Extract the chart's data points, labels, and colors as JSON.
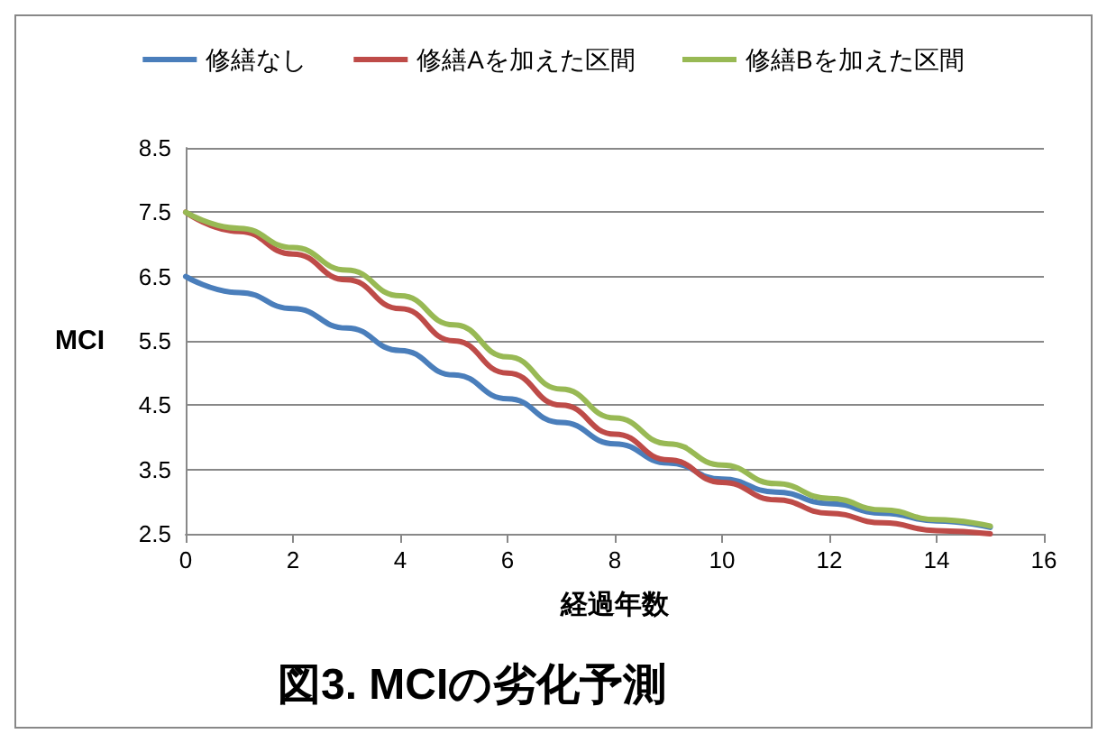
{
  "chart_data": {
    "type": "line",
    "title": "図3. MCIの劣化予測",
    "xlabel": "経過年数",
    "ylabel": "MCI",
    "x": [
      0,
      1,
      2,
      3,
      4,
      5,
      6,
      7,
      8,
      9,
      10,
      11,
      12,
      13,
      14,
      15
    ],
    "series": [
      {
        "name": "修繕なし",
        "color": "#4a7ebb",
        "values": [
          6.5,
          6.25,
          6.0,
          5.7,
          5.35,
          4.97,
          4.6,
          4.23,
          3.9,
          3.6,
          3.35,
          3.15,
          2.97,
          2.82,
          2.7,
          2.6
        ]
      },
      {
        "name": "修繕Aを加えた区間",
        "color": "#be4b48",
        "values": [
          7.5,
          7.2,
          6.85,
          6.45,
          6.0,
          5.5,
          5.0,
          4.5,
          4.05,
          3.65,
          3.3,
          3.03,
          2.82,
          2.67,
          2.55,
          2.5
        ]
      },
      {
        "name": "修繕Bを加えた区間",
        "color": "#98b954",
        "values": [
          7.5,
          7.25,
          6.95,
          6.6,
          6.2,
          5.75,
          5.25,
          4.75,
          4.3,
          3.9,
          3.57,
          3.28,
          3.05,
          2.87,
          2.72,
          2.62
        ]
      }
    ],
    "xlim": [
      0,
      16
    ],
    "xticks": [
      0,
      2,
      4,
      6,
      8,
      10,
      12,
      14,
      16
    ],
    "ylim": [
      2.5,
      8.5
    ],
    "yticks": [
      2.5,
      3.5,
      4.5,
      5.5,
      6.5,
      7.5,
      8.5
    ],
    "grid": "y",
    "legend": "top",
    "marker": "none",
    "line_style": "solid"
  }
}
